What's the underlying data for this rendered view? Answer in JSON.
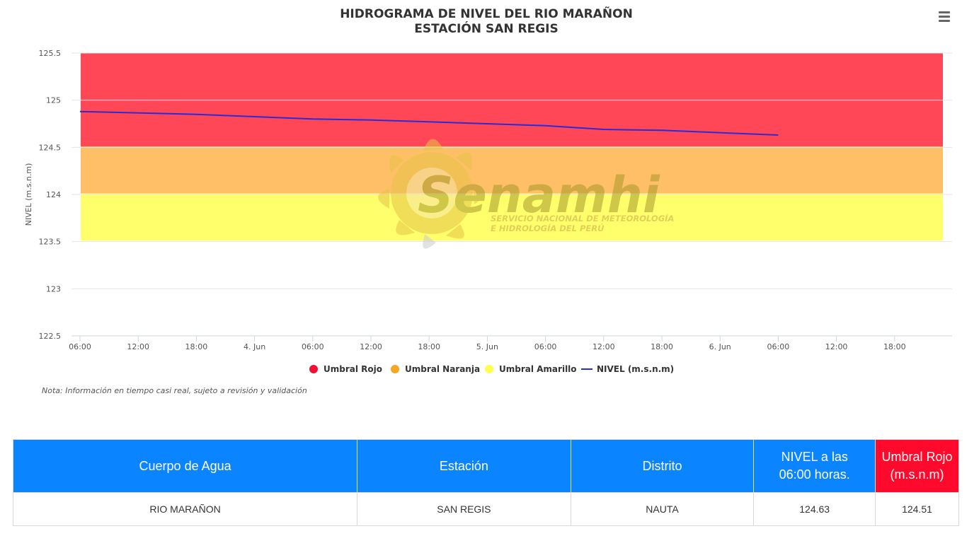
{
  "title": "HIDROGRAMA DE NIVEL DEL RIO MARAÑON",
  "subtitle": "ESTACIÓN SAN REGIS",
  "menu_icon": "hamburger-menu-icon",
  "note": "Nota: Información en tiempo casi real, sujeto a revisión y validación",
  "watermark": {
    "logo_text": "Senamhi",
    "line1": "SERVICIO NACIONAL DE METEOROLOGÍA",
    "line2": "E HIDROLOGÍA DEL PERÚ"
  },
  "colors": {
    "umbral_rojo": "#ff4757",
    "umbral_naranja": "#ffbf66",
    "umbral_amarillo": "#ffff6b",
    "nivel_line": "#2b2bd6",
    "table_header": "#0a84ff",
    "table_header_red": "#ff0a2c"
  },
  "chart_data": {
    "type": "line",
    "ylabel": "NIVEL (m.s.n.m)",
    "xlabel": "",
    "ylim": [
      122.5,
      125.5
    ],
    "yticks": [
      "122.5",
      "123",
      "123.5",
      "124",
      "124.5",
      "125",
      "125.5"
    ],
    "x_range": [
      "2024-06-03 06:00",
      "2024-06-06 22:00"
    ],
    "xticks": [
      "06:00",
      "12:00",
      "18:00",
      "4. Jun",
      "06:00",
      "12:00",
      "18:00",
      "5. Jun",
      "06:00",
      "12:00",
      "18:00",
      "6. Jun",
      "06:00",
      "12:00",
      "18:00"
    ],
    "grid": true,
    "legend_position": "bottom",
    "bands": [
      {
        "name": "Umbral Rojo",
        "from": 124.51,
        "to": 125.5,
        "color": "#ff4757"
      },
      {
        "name": "Umbral Naranja",
        "from": 124.01,
        "to": 124.51,
        "color": "#ffbf66"
      },
      {
        "name": "Umbral Amarillo",
        "from": 123.51,
        "to": 124.01,
        "color": "#ffff6b"
      }
    ],
    "legend": [
      "Umbral Rojo",
      "Umbral Naranja",
      "Umbral Amarillo",
      "NIVEL (m.s.n.m)"
    ],
    "series": [
      {
        "name": "NIVEL (m.s.n.m)",
        "x": [
          "2024-06-03 06:00",
          "2024-06-03 18:00",
          "2024-06-04 06:00",
          "2024-06-04 12:00",
          "2024-06-04 18:00",
          "2024-06-05 06:00",
          "2024-06-05 12:00",
          "2024-06-05 18:00",
          "2024-06-06 06:00"
        ],
        "values": [
          124.88,
          124.85,
          124.8,
          124.79,
          124.77,
          124.73,
          124.69,
          124.68,
          124.63
        ]
      }
    ]
  },
  "table": {
    "headers": [
      "Cuerpo de Agua",
      "Estación",
      "Distrito",
      "NIVEL a las 06:00 horas.",
      "Umbral Rojo (m.s.n.m)"
    ],
    "rows": [
      [
        "RIO MARAÑON",
        "SAN REGIS",
        "NAUTA",
        "124.63",
        "124.51"
      ]
    ]
  }
}
